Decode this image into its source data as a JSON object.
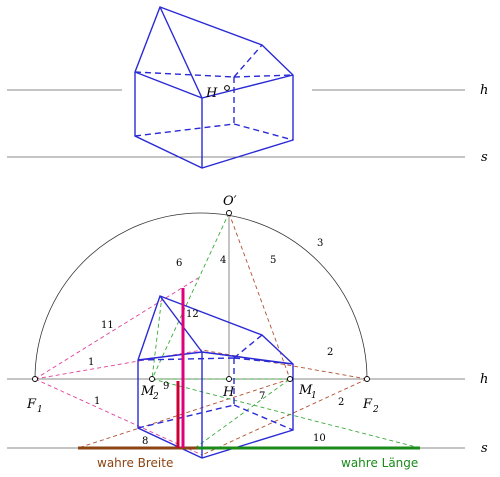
{
  "labels": {
    "h_top": "h",
    "s_top": "s",
    "H_top": "H",
    "O_prime": "O′",
    "F1": "F",
    "F1_sub": "1",
    "F2": "F",
    "F2_sub": "2",
    "M2": "M",
    "M2_sub": "2",
    "M1": "M",
    "M1_sub": "1",
    "H_bottom": "H",
    "h_bottom": "h",
    "s_bottom": "s"
  },
  "line_numbers": {
    "n1a": "1",
    "n1b": "1",
    "n2a": "2",
    "n2b": "2",
    "n3": "3",
    "n4": "4",
    "n5": "5",
    "n6": "6",
    "n7": "7",
    "n8": "8",
    "n9": "9",
    "n10": "10",
    "n11": "11",
    "n12": "12"
  },
  "captions": {
    "true_width": "wahre Breite",
    "true_length": "wahre Länge"
  },
  "colors": {
    "house": "#2a2ad6",
    "true_width": "#8b4513",
    "true_length": "#1a8a1a",
    "magenta": "#e0007a",
    "crimson": "#cc0033",
    "pink_dashed": "#e0409a",
    "brown_dashed": "#b05030",
    "green_dashed": "#3aaa3a",
    "grey_line": "#888888"
  }
}
